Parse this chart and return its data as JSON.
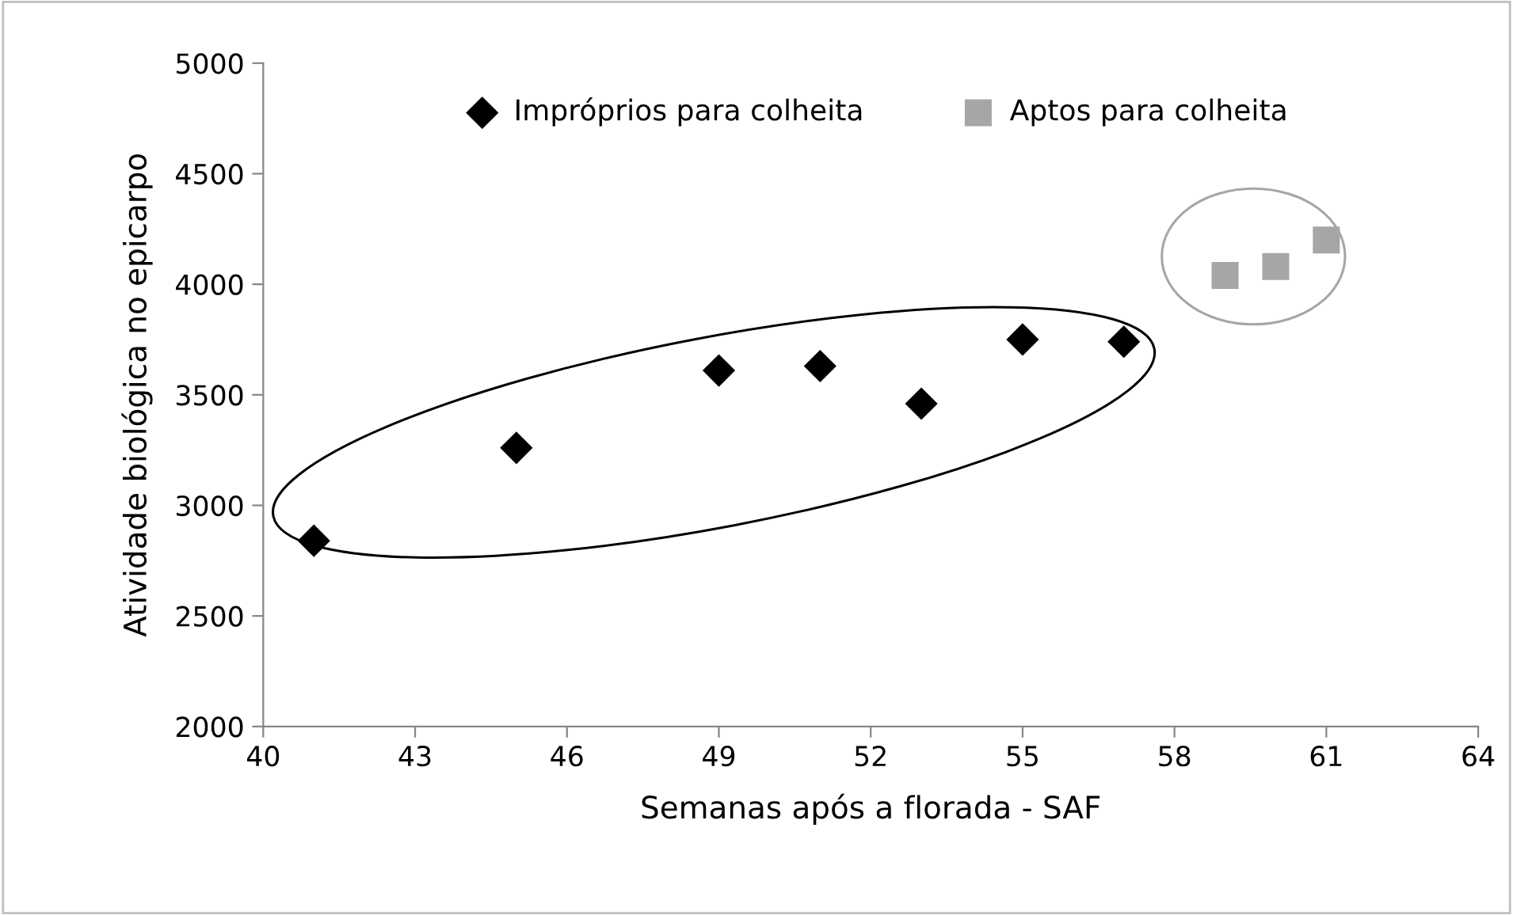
{
  "chart_data": {
    "type": "scatter",
    "xlabel": "Semanas após a florada - SAF",
    "ylabel": "Atividade biológica no epicarpo",
    "series": [
      {
        "name": "Impróprios para colheita",
        "color": "#000000",
        "marker": "diamond",
        "x": [
          41,
          45,
          49,
          51,
          53,
          55,
          57
        ],
        "values": [
          2840,
          3260,
          3610,
          3630,
          3460,
          3750,
          3740
        ]
      },
      {
        "name": "Aptos para colheita",
        "color": "#a6a6a6",
        "marker": "square",
        "x": [
          59,
          60,
          61
        ],
        "values": [
          4040,
          4080,
          4200
        ]
      }
    ],
    "xlim": [
      40,
      64
    ],
    "xticks": [
      40,
      43,
      46,
      49,
      52,
      55,
      58,
      61,
      64
    ],
    "ylim": [
      2000,
      5000
    ],
    "yticks": [
      2000,
      2500,
      3000,
      3500,
      4000,
      4500,
      5000
    ],
    "grid": false,
    "legend": "top"
  }
}
